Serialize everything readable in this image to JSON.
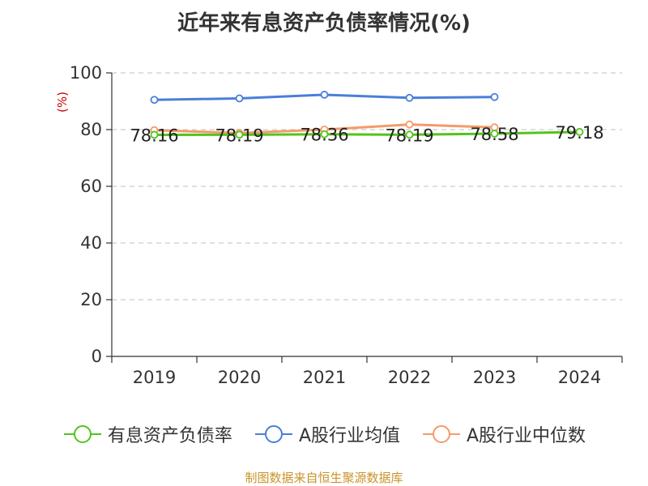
{
  "title": "近年来有息资产负债率情况(%)",
  "source_note": "制图数据来自恒生聚源数据库",
  "chart_data": {
    "type": "line",
    "title": "近年来有息资产负债率情况(%)",
    "xlabel": "",
    "ylabel": "(%)",
    "categories": [
      "2019",
      "2020",
      "2021",
      "2022",
      "2023",
      "2024"
    ],
    "ylim": [
      0,
      100
    ],
    "yticks": [
      0,
      20,
      40,
      60,
      80,
      100
    ],
    "grid": "horizontal dashed",
    "legend_position": "bottom",
    "series": [
      {
        "name": "有息资产负债率",
        "color": "#52c41a",
        "values": [
          78.16,
          78.19,
          78.36,
          78.19,
          78.58,
          79.18
        ],
        "labels": [
          "78.16",
          "78.19",
          "78.36",
          "78.19",
          "78.58",
          "79.18"
        ]
      },
      {
        "name": "A股行业均值",
        "color": "#4a7fd9",
        "values": [
          90.5,
          91.0,
          92.3,
          91.2,
          91.5,
          null
        ]
      },
      {
        "name": "A股行业中位数",
        "color": "#f59a6b",
        "values": [
          79.8,
          78.8,
          80.0,
          81.8,
          80.8,
          null
        ]
      }
    ]
  }
}
